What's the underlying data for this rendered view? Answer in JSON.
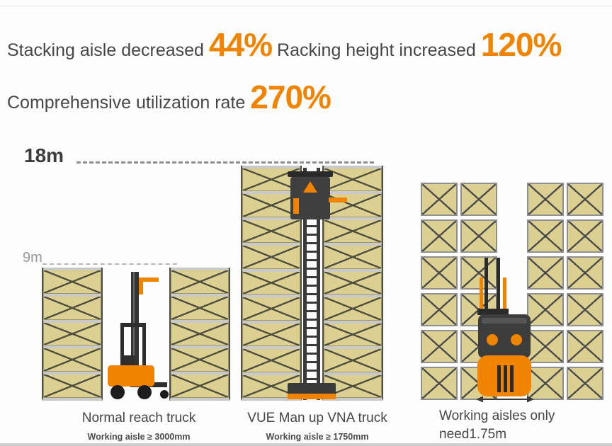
{
  "colors": {
    "accent": "#F08300",
    "label_text": "#474747",
    "muted_text": "#979797",
    "pallet_fill": "#dbcf92",
    "beam_gray": "#c9c9c9",
    "truck_dark": "#3a3a3a"
  },
  "header": {
    "stat1_label": "Stacking aisle decreased",
    "stat1_value": "44%",
    "stat2_label": "Racking height increased",
    "stat2_value": "120%",
    "stat3_label": "Comprehensive utilization rate",
    "stat3_value": "270%"
  },
  "diagram": {
    "top_height_label": "18m",
    "mid_height_label": "9m",
    "short_rack_levels": 5,
    "tall_rack_levels": 9,
    "top_view_rows": 6,
    "icons": {
      "reach_truck": "reach-truck-side-icon",
      "vna_truck": "vna-truck-front-icon",
      "top_truck": "forklift-top-view-icon",
      "aisle_arrow": "aisle-width-arrow-icon"
    }
  },
  "captions": {
    "left_title": "Normal reach truck",
    "left_sub": "Working aisle ≥ 3000mm",
    "mid_title": "VUE Man up VNA truck",
    "mid_sub": "Working aisle ≥ 1750mm",
    "right_title": "Working aisles only need1.75m"
  }
}
